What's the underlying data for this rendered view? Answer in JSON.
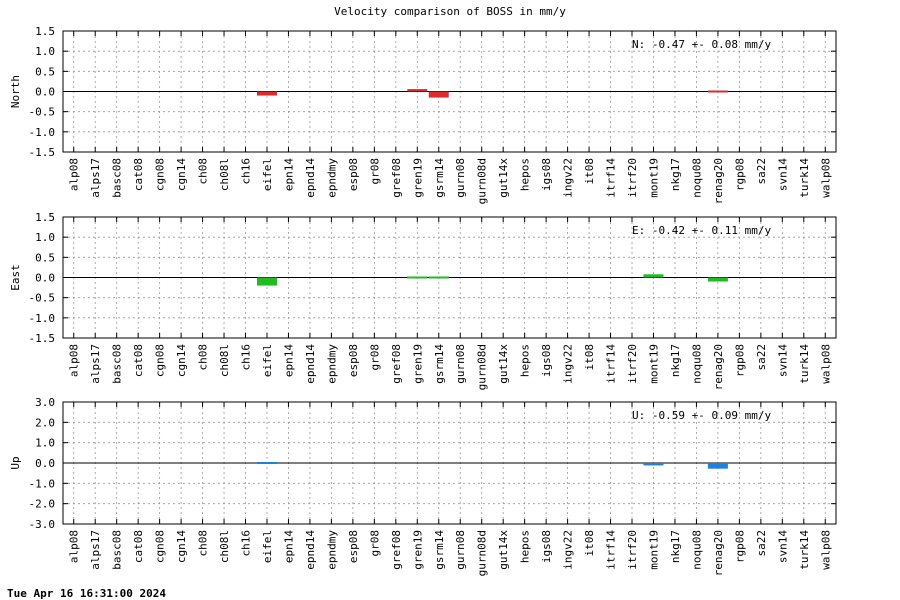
{
  "title": "Velocity comparison of BOSS in mm/y",
  "timestamp": "Tue Apr 16 16:31:00 2024",
  "chart_data": [
    {
      "type": "bar",
      "ylabel": "North",
      "annotation": "N:  -0.47 +-  0.08 mm/y",
      "ylim": [
        -1.5,
        1.5
      ],
      "yticks": [
        "1.5",
        "1.0",
        "0.5",
        "0.0",
        "-0.5",
        "-1.0",
        "-1.5"
      ],
      "ytick_values": [
        1.5,
        1.0,
        0.5,
        0.0,
        -0.5,
        -1.0,
        -1.5
      ],
      "color": "#dd2a2a",
      "grid": true,
      "categories": [
        "alp08",
        "alps17",
        "basc08",
        "cat08",
        "cgn08",
        "cgn14",
        "ch08",
        "ch08l",
        "ch16",
        "eifel",
        "epn14",
        "epnd14",
        "epndmy",
        "esp08",
        "gr08",
        "gref08",
        "gren19",
        "gsrm14",
        "gurn08",
        "gurn08d",
        "gut14x",
        "hepos",
        "igs08",
        "ingv22",
        "it08",
        "itrf14",
        "itrf20",
        "mont19",
        "nkg17",
        "noqu08",
        "renag20",
        "rgp08",
        "sa22",
        "svn14",
        "turk14",
        "walp08"
      ],
      "values": [
        null,
        null,
        null,
        null,
        null,
        null,
        null,
        null,
        null,
        -0.1,
        null,
        null,
        null,
        null,
        null,
        null,
        0.06,
        -0.15,
        null,
        null,
        null,
        null,
        null,
        null,
        null,
        null,
        null,
        null,
        null,
        null,
        0.0,
        null,
        null,
        null,
        null,
        null
      ]
    },
    {
      "type": "bar",
      "ylabel": "East",
      "annotation": "E:  -0.42 +-  0.11 mm/y",
      "ylim": [
        -1.5,
        1.5
      ],
      "yticks": [
        "1.5",
        "1.0",
        "0.5",
        "0.0",
        "-0.5",
        "-1.0",
        "-1.5"
      ],
      "ytick_values": [
        1.5,
        1.0,
        0.5,
        0.0,
        -0.5,
        -1.0,
        -1.5
      ],
      "color": "#22bb22",
      "grid": true,
      "categories": [
        "alp08",
        "alps17",
        "basc08",
        "cat08",
        "cgn08",
        "cgn14",
        "ch08",
        "ch08l",
        "ch16",
        "eifel",
        "epn14",
        "epnd14",
        "epndmy",
        "esp08",
        "gr08",
        "gref08",
        "gren19",
        "gsrm14",
        "gurn08",
        "gurn08d",
        "gut14x",
        "hepos",
        "igs08",
        "ingv22",
        "it08",
        "itrf14",
        "itrf20",
        "mont19",
        "nkg17",
        "noqu08",
        "renag20",
        "rgp08",
        "sa22",
        "svn14",
        "turk14",
        "walp08"
      ],
      "values": [
        null,
        null,
        null,
        null,
        null,
        null,
        null,
        null,
        null,
        -0.2,
        null,
        null,
        null,
        null,
        null,
        null,
        0.03,
        0.01,
        null,
        null,
        null,
        null,
        null,
        null,
        null,
        null,
        null,
        0.08,
        null,
        null,
        -0.1,
        null,
        null,
        null,
        null,
        null
      ]
    },
    {
      "type": "bar",
      "ylabel": "Up",
      "annotation": "U:  -0.59 +-  0.09 mm/y",
      "ylim": [
        -3.0,
        3.0
      ],
      "yticks": [
        "3.0",
        "2.0",
        "1.0",
        "0.0",
        "-1.0",
        "-2.0",
        "-3.0"
      ],
      "ytick_values": [
        3.0,
        2.0,
        1.0,
        0.0,
        -1.0,
        -2.0,
        -3.0
      ],
      "color": "#1f80e0",
      "grid": true,
      "categories": [
        "alp08",
        "alps17",
        "basc08",
        "cat08",
        "cgn08",
        "cgn14",
        "ch08",
        "ch08l",
        "ch16",
        "eifel",
        "epn14",
        "epnd14",
        "epndmy",
        "esp08",
        "gr08",
        "gref08",
        "gren19",
        "gsrm14",
        "gurn08",
        "gurn08d",
        "gut14x",
        "hepos",
        "igs08",
        "ingv22",
        "it08",
        "itrf14",
        "itrf20",
        "mont19",
        "nkg17",
        "noqu08",
        "renag20",
        "rgp08",
        "sa22",
        "svn14",
        "turk14",
        "walp08"
      ],
      "values": [
        null,
        null,
        null,
        null,
        null,
        null,
        null,
        null,
        null,
        0.06,
        null,
        null,
        null,
        null,
        null,
        null,
        null,
        null,
        null,
        null,
        null,
        null,
        null,
        null,
        null,
        null,
        null,
        -0.12,
        null,
        null,
        -0.28,
        null,
        null,
        null,
        null,
        null
      ]
    }
  ]
}
